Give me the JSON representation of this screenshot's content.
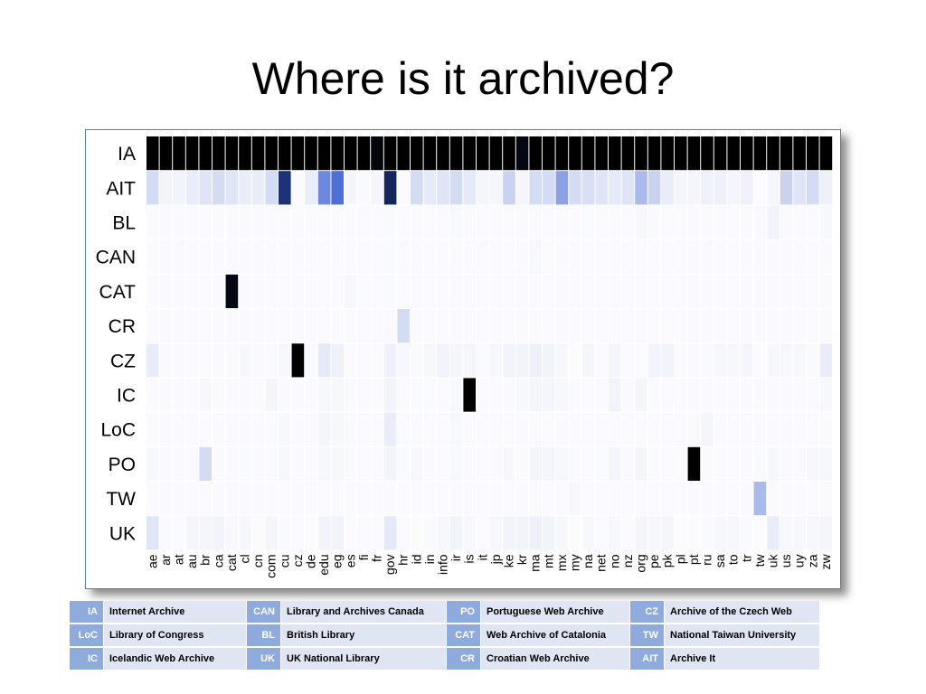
{
  "title": "Where is it archived?",
  "chart_data": {
    "type": "heatmap",
    "rows": [
      "IA",
      "AIT",
      "BL",
      "CAN",
      "CAT",
      "CR",
      "CZ",
      "IC",
      "LoC",
      "PO",
      "TW",
      "UK"
    ],
    "columns": [
      "ae",
      "ar",
      "at",
      "au",
      "br",
      "ca",
      "cat",
      "cl",
      "cn",
      "com",
      "cu",
      "cz",
      "de",
      "edu",
      "eg",
      "es",
      "fi",
      "fr",
      "gov",
      "hr",
      "id",
      "in",
      "info",
      "ir",
      "is",
      "it",
      "jp",
      "ke",
      "kr",
      "ma",
      "mt",
      "mx",
      "my",
      "na",
      "net",
      "no",
      "nz",
      "org",
      "pe",
      "pk",
      "pl",
      "pt",
      "ru",
      "sa",
      "to",
      "tr",
      "tw",
      "uk",
      "us",
      "uy",
      "za",
      "zw"
    ],
    "color_scale": [
      "#ffffff",
      "#c9d3f0",
      "#2f57d0",
      "#0d1a3d",
      "#000000"
    ],
    "value_range": [
      0,
      1
    ],
    "values": [
      [
        1,
        1,
        1,
        1,
        1,
        1,
        1,
        1,
        1,
        1,
        1,
        1,
        1,
        1,
        1,
        1,
        1,
        0.95,
        1,
        1,
        1,
        1,
        1,
        1,
        1,
        1,
        1,
        1,
        0.93,
        1,
        1,
        1,
        1,
        1,
        1,
        1,
        1,
        1,
        1,
        1,
        1,
        1,
        1,
        1,
        1,
        1,
        1,
        1,
        1,
        1,
        1,
        1
      ],
      [
        0.2,
        0.06,
        0.06,
        0.1,
        0.15,
        0.2,
        0.15,
        0.1,
        0.1,
        0.2,
        0.65,
        0,
        0.1,
        0.4,
        0.45,
        0.05,
        0,
        0.05,
        0.7,
        0,
        0.2,
        0.12,
        0.15,
        0.2,
        0.12,
        0.05,
        0.05,
        0.25,
        0.05,
        0.2,
        0.2,
        0.35,
        0.2,
        0.18,
        0.15,
        0.12,
        0.15,
        0.3,
        0.25,
        0.1,
        0.05,
        0.05,
        0.08,
        0.08,
        0.05,
        0.08,
        0.02,
        0.05,
        0.25,
        0.15,
        0.2,
        0.08
      ],
      [
        0,
        0,
        0,
        0,
        0,
        0,
        0,
        0,
        0,
        0,
        0,
        0,
        0,
        0,
        0,
        0,
        0,
        0,
        0.03,
        0,
        0,
        0,
        0,
        0.04,
        0,
        0,
        0,
        0,
        0,
        0,
        0,
        0,
        0,
        0.03,
        0,
        0,
        0,
        0.04,
        0,
        0,
        0,
        0,
        0,
        0,
        0,
        0,
        0,
        0.06,
        0,
        0,
        0,
        0.04
      ],
      [
        0,
        0,
        0,
        0,
        0,
        0.03,
        0,
        0,
        0,
        0,
        0,
        0,
        0,
        0,
        0,
        0,
        0,
        0,
        0.03,
        0,
        0,
        0,
        0,
        0,
        0,
        0,
        0,
        0,
        0,
        0.04,
        0,
        0,
        0,
        0,
        0,
        0,
        0,
        0,
        0,
        0,
        0,
        0,
        0,
        0,
        0,
        0,
        0,
        0,
        0,
        0,
        0,
        0
      ],
      [
        0,
        0,
        0,
        0,
        0,
        0,
        0.92,
        0,
        0,
        0,
        0,
        0,
        0,
        0,
        0,
        0.04,
        0,
        0,
        0.03,
        0,
        0,
        0,
        0,
        0,
        0,
        0,
        0,
        0,
        0,
        0,
        0,
        0,
        0,
        0,
        0,
        0,
        0,
        0,
        0,
        0,
        0,
        0,
        0,
        0,
        0,
        0,
        0,
        0,
        0,
        0,
        0,
        0
      ],
      [
        0,
        0,
        0,
        0,
        0,
        0,
        0,
        0,
        0,
        0,
        0,
        0,
        0,
        0,
        0,
        0,
        0,
        0,
        0,
        0.2,
        0,
        0,
        0,
        0,
        0,
        0,
        0,
        0,
        0,
        0,
        0,
        0,
        0,
        0,
        0,
        0,
        0,
        0,
        0,
        0,
        0,
        0,
        0,
        0,
        0,
        0,
        0,
        0,
        0,
        0,
        0,
        0
      ],
      [
        0.1,
        0,
        0,
        0,
        0,
        0,
        0,
        0.04,
        0,
        0,
        0.04,
        1,
        0.03,
        0.12,
        0.08,
        0,
        0,
        0,
        0.08,
        0.04,
        0.03,
        0.04,
        0.06,
        0.05,
        0.05,
        0.03,
        0.04,
        0.06,
        0.06,
        0.08,
        0.06,
        0.04,
        0.02,
        0.05,
        0,
        0.05,
        0,
        0.02,
        0.06,
        0.06,
        0,
        0,
        0.03,
        0.04,
        0.04,
        0.05,
        0.02,
        0.04,
        0.04,
        0.04,
        0,
        0.1
      ],
      [
        0,
        0,
        0,
        0,
        0.04,
        0,
        0,
        0,
        0,
        0.05,
        0,
        0,
        0,
        0.04,
        0.04,
        0,
        0,
        0,
        0.06,
        0,
        0,
        0.03,
        0,
        0.04,
        1,
        0,
        0,
        0.03,
        0.04,
        0.05,
        0.05,
        0.04,
        0,
        0,
        0,
        0.06,
        0,
        0.05,
        0,
        0,
        0,
        0,
        0,
        0,
        0,
        0,
        0,
        0,
        0,
        0,
        0,
        0.04
      ],
      [
        0,
        0,
        0,
        0,
        0,
        0,
        0,
        0,
        0,
        0,
        0.04,
        0,
        0,
        0.05,
        0.04,
        0,
        0,
        0,
        0.1,
        0.03,
        0,
        0,
        0,
        0.04,
        0,
        0,
        0,
        0,
        0,
        0,
        0,
        0,
        0,
        0,
        0,
        0,
        0,
        0,
        0,
        0,
        0,
        0,
        0.05,
        0,
        0,
        0,
        0,
        0,
        0,
        0,
        0,
        0
      ],
      [
        0.04,
        0,
        0,
        0,
        0.2,
        0,
        0,
        0.03,
        0,
        0,
        0.04,
        0,
        0,
        0.04,
        0.04,
        0,
        0,
        0,
        0.06,
        0.03,
        0.04,
        0,
        0,
        0.04,
        0,
        0,
        0,
        0.04,
        0,
        0.05,
        0.05,
        0.04,
        0,
        0,
        0.03,
        0.05,
        0,
        0.05,
        0,
        0,
        0,
        1,
        0,
        0,
        0,
        0,
        0.03,
        0.04,
        0,
        0,
        0.04,
        0.04
      ],
      [
        0,
        0,
        0,
        0,
        0,
        0,
        0,
        0,
        0,
        0,
        0,
        0,
        0,
        0,
        0,
        0,
        0,
        0,
        0,
        0,
        0,
        0,
        0,
        0,
        0,
        0,
        0,
        0,
        0,
        0,
        0,
        0,
        0.04,
        0,
        0,
        0,
        0,
        0,
        0,
        0,
        0,
        0,
        0,
        0,
        0,
        0,
        0.3,
        0,
        0,
        0,
        0,
        0
      ],
      [
        0.14,
        0.03,
        0.03,
        0.05,
        0.05,
        0.06,
        0.04,
        0.04,
        0.02,
        0.05,
        0.03,
        0,
        0.02,
        0.06,
        0.06,
        0.02,
        0,
        0,
        0.12,
        0.03,
        0.02,
        0.03,
        0.04,
        0.06,
        0.04,
        0.02,
        0.04,
        0.06,
        0.06,
        0.08,
        0.06,
        0.04,
        0.02,
        0.04,
        0.03,
        0.04,
        0.02,
        0.05,
        0.04,
        0.05,
        0.02,
        0.02,
        0.03,
        0.04,
        0.04,
        0.03,
        0.02,
        0.1,
        0.04,
        0.04,
        0.04,
        0.05
      ]
    ]
  },
  "legend": [
    [
      {
        "code": "IA",
        "name": "Internet Archive"
      },
      {
        "code": "CAN",
        "name": "Library and Archives Canada"
      },
      {
        "code": "PO",
        "name": "Portuguese Web Archive"
      },
      {
        "code": "CZ",
        "name": "Archive of the Czech Web"
      }
    ],
    [
      {
        "code": "LoC",
        "name": "Library of Congress"
      },
      {
        "code": "BL",
        "name": "British Library"
      },
      {
        "code": "CAT",
        "name": "Web Archive of Catalonia"
      },
      {
        "code": "TW",
        "name": "National Taiwan University"
      }
    ],
    [
      {
        "code": "IC",
        "name": "Icelandic Web Archive"
      },
      {
        "code": "UK",
        "name": "UK National Library"
      },
      {
        "code": "CR",
        "name": "Croatian Web Archive"
      },
      {
        "code": "AIT",
        "name": "Archive It"
      }
    ]
  ]
}
